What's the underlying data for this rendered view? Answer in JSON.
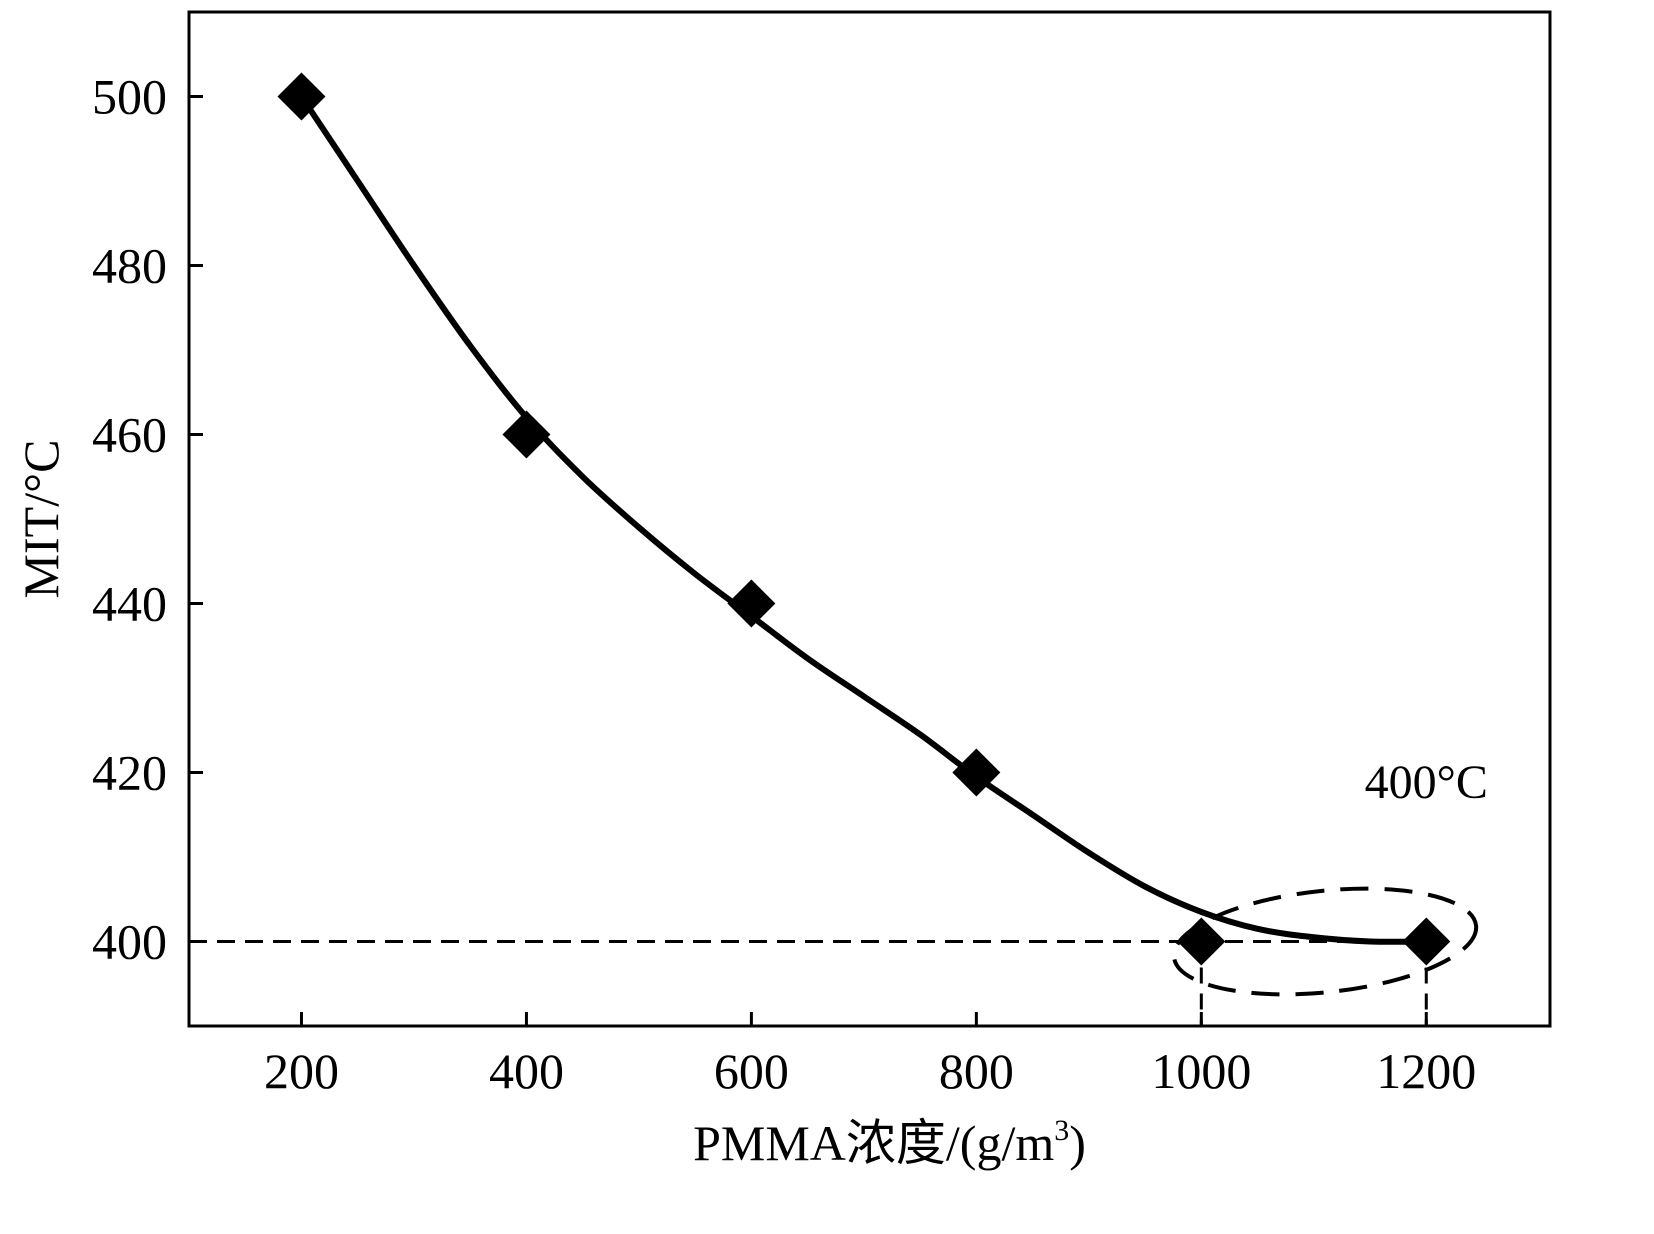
{
  "chart_data": {
    "type": "line",
    "title": "",
    "xlabel": "PMMA浓度/(g/m",
    "xlabel_sup": "3",
    "xlabel_close": ")",
    "ylabel": "MIT/°C",
    "xlim": [
      100,
      1310
    ],
    "ylim": [
      390,
      510
    ],
    "x_ticks": [
      200,
      400,
      600,
      800,
      1000,
      1200
    ],
    "y_ticks": [
      400,
      420,
      440,
      460,
      480,
      500
    ],
    "x_tick_labels": [
      "200",
      "400",
      "600",
      "800",
      "1000",
      "1200"
    ],
    "y_tick_labels": [
      "400",
      "420",
      "440",
      "460",
      "480",
      "500"
    ],
    "series": [
      {
        "name": "MIT",
        "marker": "diamond",
        "color": "#000000",
        "x": [
          200,
          400,
          600,
          800,
          1000,
          1200
        ],
        "y": [
          500,
          460,
          440,
          420,
          400,
          400
        ]
      }
    ],
    "fit_curve": {
      "style": "solid",
      "x": [
        200,
        250,
        300,
        350,
        400,
        450,
        500,
        550,
        600,
        650,
        700,
        750,
        800,
        850,
        900,
        950,
        1000,
        1050,
        1100,
        1150,
        1200
      ],
      "y": [
        500,
        490,
        480,
        470.5,
        462,
        455,
        449,
        443.5,
        438.5,
        433.5,
        429,
        424.5,
        419.5,
        415,
        410.5,
        406.5,
        403.5,
        401.5,
        400.5,
        400,
        400
      ]
    },
    "reference_line": {
      "y": 400,
      "style": "dashed"
    },
    "drop_lines": [
      1000,
      1200
    ],
    "annotation": {
      "text": "400°C",
      "x": 1200,
      "y": 417,
      "circle_center_x": 1110,
      "circle_center_y": 400
    }
  }
}
